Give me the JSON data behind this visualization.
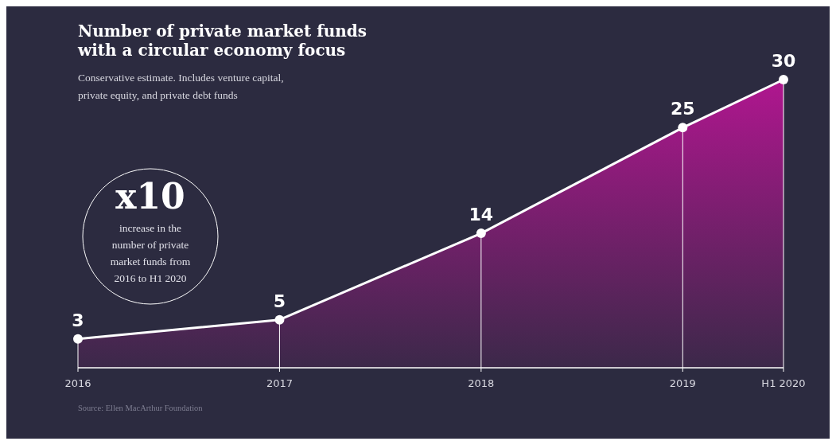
{
  "chart_data": {
    "type": "area",
    "title": "Number of private market funds with a circular economy focus",
    "subtitle": "Conservative estimate. Includes venture capital, private equity, and private debt funds",
    "x": [
      2016,
      2017,
      2018,
      2019,
      2019.5
    ],
    "xlim": [
      2016,
      2019.5
    ],
    "xticks": [
      2016,
      2017,
      2018,
      2019,
      {
        "value": 2019.5,
        "label": "H1 2020"
      }
    ],
    "tick_labels": "x",
    "series": [
      {
        "color": "#b0168f",
        "values": [
          3,
          5,
          14,
          25,
          30
        ]
      }
    ],
    "data_labels": true,
    "marker": "circle",
    "grid": "x",
    "annotations": [
      "x10",
      "increase in the number of private market funds from 2016 to H1 2020",
      "Source: Ellen MacArthur Foundation"
    ]
  }
}
